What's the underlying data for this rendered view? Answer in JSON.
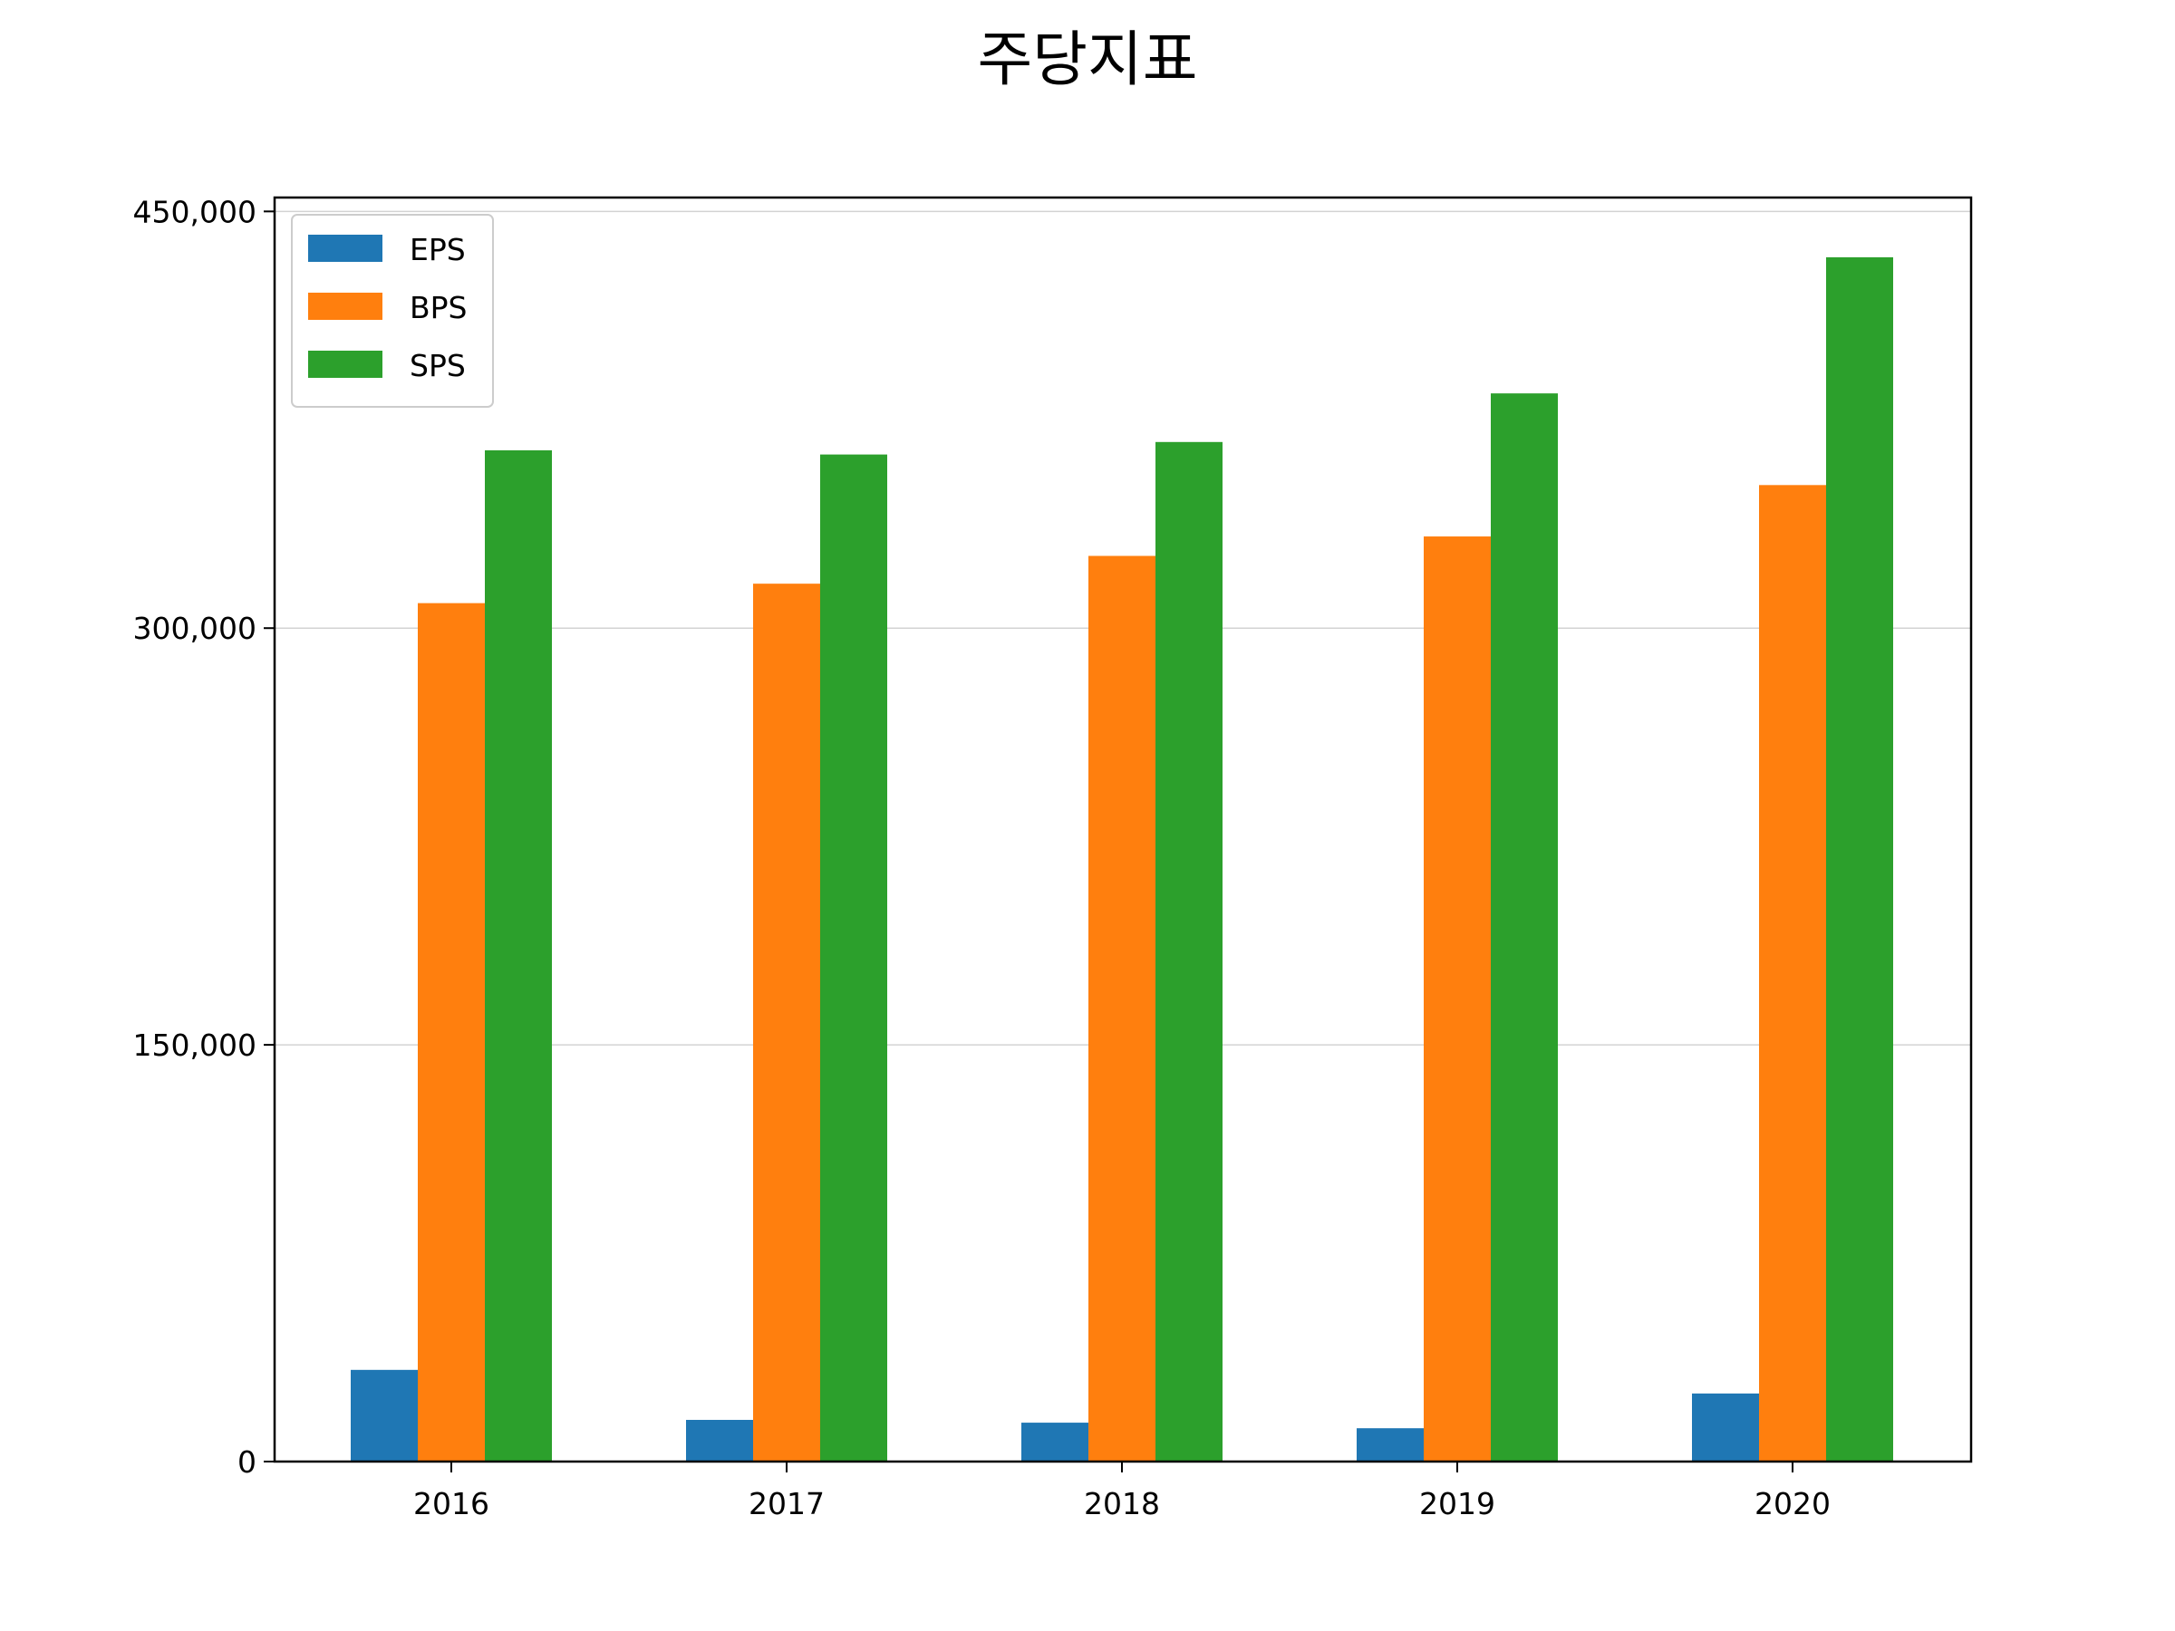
{
  "chart_data": {
    "type": "bar",
    "title": "주당지표",
    "xlabel": "",
    "ylabel": "",
    "categories": [
      "2016",
      "2017",
      "2018",
      "2019",
      "2020"
    ],
    "series": [
      {
        "name": "EPS",
        "color": "#1f77b4",
        "values": [
          33000,
          15000,
          14000,
          12000,
          24500
        ]
      },
      {
        "name": "BPS",
        "color": "#ff7f0e",
        "values": [
          309000,
          316000,
          326000,
          333000,
          351500
        ]
      },
      {
        "name": "SPS",
        "color": "#2ca02c",
        "values": [
          364000,
          362500,
          367000,
          384500,
          433500
        ]
      }
    ],
    "ylim": [
      0,
      455000
    ],
    "yticks": [
      0,
      150000,
      300000,
      450000
    ],
    "ytick_labels": [
      "0",
      "150,000",
      "300,000",
      "450,000"
    ],
    "grid": "horizontal",
    "legend_position": "top-left"
  }
}
